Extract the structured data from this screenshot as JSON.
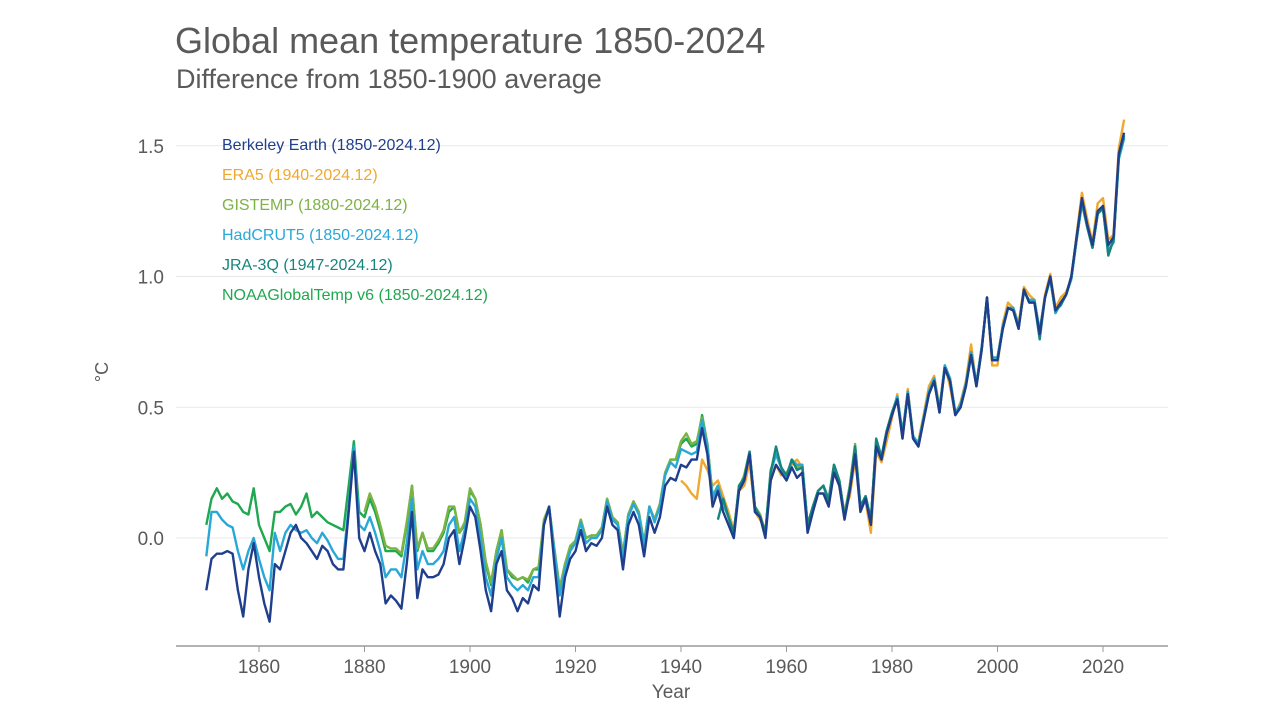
{
  "chart_data": {
    "type": "line",
    "title": "Global mean temperature 1850-2024",
    "subtitle": "Difference from 1850-1900 average",
    "xlabel": "Year",
    "ylabel": "°C",
    "xlim": [
      1843,
      2032
    ],
    "ylim": [
      -0.42,
      1.65
    ],
    "xticks": [
      1860,
      1880,
      1900,
      1920,
      1940,
      1960,
      1980,
      2000,
      2020
    ],
    "yticks": [
      0.0,
      0.5,
      1.0,
      1.5
    ],
    "ytick_labels": [
      "0.0",
      "0.5",
      "1.0",
      "1.5"
    ],
    "grid": "horizontal",
    "legend_position": "top-left",
    "series": [
      {
        "name": "ERA5 (1940-2024.12)",
        "color": "#f0a82e",
        "start": 1940,
        "values": [
          0.22,
          0.2,
          0.17,
          0.15,
          0.3,
          0.26,
          0.2,
          0.22,
          0.16,
          0.1,
          0.03,
          0.18,
          0.2,
          0.29,
          0.1,
          0.07,
          0.03,
          0.22,
          0.28,
          0.24,
          0.25,
          0.28,
          0.3,
          0.27,
          0.05,
          0.12,
          0.18,
          0.2,
          0.14,
          0.25,
          0.2,
          0.1,
          0.16,
          0.3,
          0.13,
          0.14,
          0.02,
          0.33,
          0.29,
          0.37,
          0.46,
          0.55,
          0.38,
          0.57,
          0.38,
          0.37,
          0.47,
          0.58,
          0.62,
          0.5,
          0.66,
          0.58,
          0.47,
          0.52,
          0.6,
          0.74,
          0.58,
          0.72,
          0.92,
          0.66,
          0.66,
          0.82,
          0.9,
          0.88,
          0.82,
          0.96,
          0.93,
          0.91,
          0.79,
          0.93,
          1.01,
          0.88,
          0.92,
          0.94,
          0.99,
          1.16,
          1.32,
          1.22,
          1.13,
          1.28,
          1.3,
          1.14,
          1.16,
          1.49,
          1.6
        ]
      },
      {
        "name": "NOAAGlobalTemp v6 (1850-2024.12)",
        "color": "#1fa84f",
        "start": 1850,
        "values": [
          0.05,
          0.15,
          0.19,
          0.15,
          0.17,
          0.14,
          0.13,
          0.1,
          0.09,
          0.19,
          0.05,
          0.0,
          -0.05,
          0.1,
          0.1,
          0.12,
          0.13,
          0.09,
          0.12,
          0.17,
          0.08,
          0.1,
          0.08,
          0.06,
          0.05,
          0.04,
          0.03,
          0.2,
          0.37,
          0.1,
          0.08,
          0.15,
          0.1,
          0.03,
          -0.05,
          -0.05,
          -0.05,
          -0.07,
          0.05,
          0.2,
          -0.05,
          0.02,
          -0.05,
          -0.05,
          -0.02,
          0.02,
          0.1,
          0.12,
          0.02,
          0.05,
          0.18,
          0.15,
          0.05,
          -0.1,
          -0.18,
          -0.05,
          0.03,
          -0.12,
          -0.15,
          -0.16,
          -0.15,
          -0.17,
          -0.12,
          -0.12,
          0.06,
          0.12,
          -0.05,
          -0.2,
          -0.1,
          -0.04,
          -0.01,
          0.07,
          0.0,
          0.01,
          0.01,
          0.04,
          0.15,
          0.08,
          0.06,
          -0.06,
          0.09,
          0.14,
          0.1,
          -0.02,
          0.12,
          0.07,
          0.13,
          0.25,
          0.3,
          0.3,
          0.36,
          0.38,
          0.35,
          0.36,
          0.47,
          0.36,
          0.16,
          0.2,
          0.13,
          0.08,
          0.02,
          0.19,
          0.24,
          0.33,
          0.12,
          0.09,
          0.02,
          0.26,
          0.32,
          0.27,
          0.23,
          0.3,
          0.27,
          0.28,
          0.05,
          0.12,
          0.18,
          0.2,
          0.15,
          0.28,
          0.22,
          0.09,
          0.2,
          0.35,
          0.12,
          0.16,
          0.07,
          0.37,
          0.31,
          0.41,
          0.48,
          0.54,
          0.4,
          0.56,
          0.39,
          0.36,
          0.46,
          0.56,
          0.61,
          0.49,
          0.66,
          0.61,
          0.48,
          0.51,
          0.59,
          0.71,
          0.59,
          0.73,
          0.91,
          0.69,
          0.69,
          0.81,
          0.88,
          0.88,
          0.81,
          0.94,
          0.91,
          0.91,
          0.79,
          0.92,
          0.99,
          0.86,
          0.9,
          0.93,
          0.99,
          1.14,
          1.28,
          1.19,
          1.11,
          1.24,
          1.26,
          1.1,
          1.13,
          1.45,
          1.53
        ]
      },
      {
        "name": "GISTEMP (1880-2024.12)",
        "color": "#7cb342",
        "start": 1880,
        "values": [
          0.1,
          0.17,
          0.12,
          0.05,
          -0.03,
          -0.04,
          -0.04,
          -0.06,
          0.06,
          0.2,
          -0.04,
          0.02,
          -0.04,
          -0.04,
          -0.01,
          0.03,
          0.12,
          0.12,
          0.02,
          0.06,
          0.19,
          0.15,
          0.05,
          -0.09,
          -0.17,
          -0.05,
          0.03,
          -0.12,
          -0.14,
          -0.16,
          -0.15,
          -0.16,
          -0.12,
          -0.11,
          0.07,
          0.12,
          -0.04,
          -0.19,
          -0.1,
          -0.03,
          -0.01,
          0.07,
          0.0,
          0.01,
          0.01,
          0.04,
          0.15,
          0.08,
          0.06,
          -0.06,
          0.09,
          0.14,
          0.1,
          -0.02,
          0.12,
          0.07,
          0.13,
          0.25,
          0.3,
          0.3,
          0.37,
          0.4,
          0.36,
          0.37,
          0.46,
          0.36,
          0.16,
          0.2,
          0.13,
          0.08,
          0.02,
          0.19,
          0.24,
          0.33,
          0.12,
          0.09,
          0.02,
          0.26,
          0.32,
          0.27,
          0.23,
          0.3,
          0.27,
          0.28,
          0.05,
          0.12,
          0.18,
          0.2,
          0.15,
          0.28,
          0.22,
          0.09,
          0.2,
          0.36,
          0.12,
          0.16,
          0.07,
          0.37,
          0.31,
          0.41,
          0.48,
          0.54,
          0.4,
          0.56,
          0.39,
          0.36,
          0.46,
          0.56,
          0.61,
          0.49,
          0.66,
          0.61,
          0.48,
          0.51,
          0.59,
          0.71,
          0.59,
          0.73,
          0.91,
          0.69,
          0.69,
          0.81,
          0.88,
          0.88,
          0.81,
          0.94,
          0.91,
          0.91,
          0.79,
          0.92,
          0.99,
          0.86,
          0.9,
          0.93,
          0.99,
          1.14,
          1.28,
          1.19,
          1.11,
          1.24,
          1.26,
          1.1,
          1.13,
          1.46,
          1.54
        ]
      },
      {
        "name": "HadCRUT5 (1850-2024.12)",
        "color": "#29a8d8",
        "start": 1850,
        "values": [
          -0.07,
          0.1,
          0.1,
          0.07,
          0.05,
          0.04,
          -0.05,
          -0.12,
          -0.05,
          0.0,
          -0.08,
          -0.15,
          -0.2,
          0.02,
          -0.05,
          0.02,
          0.05,
          0.03,
          0.02,
          0.03,
          0.0,
          -0.02,
          0.02,
          -0.01,
          -0.05,
          -0.08,
          -0.08,
          0.12,
          0.35,
          0.05,
          0.03,
          0.08,
          0.02,
          -0.05,
          -0.15,
          -0.12,
          -0.12,
          -0.15,
          -0.02,
          0.15,
          -0.12,
          -0.05,
          -0.1,
          -0.1,
          -0.08,
          -0.05,
          0.05,
          0.08,
          -0.05,
          0.03,
          0.15,
          0.12,
          0.0,
          -0.15,
          -0.22,
          -0.08,
          0.0,
          -0.15,
          -0.18,
          -0.2,
          -0.18,
          -0.2,
          -0.15,
          -0.15,
          0.05,
          0.12,
          -0.05,
          -0.22,
          -0.12,
          -0.05,
          -0.02,
          0.06,
          -0.02,
          0.0,
          0.0,
          0.03,
          0.14,
          0.07,
          0.05,
          -0.08,
          0.08,
          0.13,
          0.09,
          -0.03,
          0.12,
          0.06,
          0.12,
          0.24,
          0.29,
          0.27,
          0.34,
          0.33,
          0.32,
          0.33,
          0.45,
          0.35,
          0.15,
          0.2,
          0.13,
          0.08,
          0.0,
          0.2,
          0.23,
          0.33,
          0.12,
          0.08,
          0.02,
          0.25,
          0.32,
          0.27,
          0.23,
          0.3,
          0.28,
          0.28,
          0.05,
          0.12,
          0.18,
          0.2,
          0.15,
          0.27,
          0.22,
          0.08,
          0.19,
          0.34,
          0.12,
          0.16,
          0.07,
          0.36,
          0.31,
          0.41,
          0.48,
          0.54,
          0.4,
          0.56,
          0.39,
          0.36,
          0.46,
          0.56,
          0.61,
          0.49,
          0.66,
          0.61,
          0.48,
          0.51,
          0.59,
          0.71,
          0.59,
          0.73,
          0.91,
          0.69,
          0.69,
          0.81,
          0.88,
          0.88,
          0.81,
          0.94,
          0.91,
          0.91,
          0.79,
          0.92,
          0.99,
          0.86,
          0.9,
          0.93,
          0.99,
          1.14,
          1.28,
          1.19,
          1.11,
          1.24,
          1.26,
          1.1,
          1.13,
          1.45,
          1.53
        ]
      },
      {
        "name": "JRA-3Q (1947-2024.12)",
        "color": "#16857e",
        "start": 1947,
        "values": [
          0.07,
          0.15,
          0.08,
          0.02,
          0.2,
          0.23,
          0.33,
          0.12,
          0.08,
          0.02,
          0.25,
          0.35,
          0.27,
          0.24,
          0.3,
          0.26,
          0.27,
          0.05,
          0.12,
          0.18,
          0.2,
          0.14,
          0.28,
          0.22,
          0.08,
          0.19,
          0.35,
          0.12,
          0.16,
          0.07,
          0.38,
          0.31,
          0.41,
          0.48,
          0.53,
          0.39,
          0.55,
          0.38,
          0.35,
          0.45,
          0.55,
          0.6,
          0.48,
          0.65,
          0.6,
          0.47,
          0.5,
          0.58,
          0.7,
          0.58,
          0.72,
          0.92,
          0.68,
          0.68,
          0.8,
          0.88,
          0.87,
          0.8,
          0.95,
          0.9,
          0.9,
          0.76,
          0.92,
          1.0,
          0.87,
          0.89,
          0.93,
          1.0,
          1.15,
          1.29,
          1.19,
          1.11,
          1.24,
          1.26,
          1.08,
          1.14,
          1.46,
          1.54
        ]
      },
      {
        "name": "Berkeley Earth (1850-2024.12)",
        "color": "#1f3e8c",
        "start": 1850,
        "values": [
          -0.2,
          -0.08,
          -0.06,
          -0.06,
          -0.05,
          -0.06,
          -0.2,
          -0.3,
          -0.12,
          -0.02,
          -0.15,
          -0.25,
          -0.32,
          -0.1,
          -0.12,
          -0.05,
          0.02,
          0.05,
          0.0,
          -0.02,
          -0.05,
          -0.08,
          -0.03,
          -0.05,
          -0.1,
          -0.12,
          -0.12,
          0.1,
          0.33,
          0.0,
          -0.05,
          0.02,
          -0.05,
          -0.1,
          -0.25,
          -0.22,
          -0.24,
          -0.27,
          -0.1,
          0.1,
          -0.23,
          -0.12,
          -0.15,
          -0.15,
          -0.14,
          -0.1,
          0.0,
          0.03,
          -0.1,
          0.0,
          0.12,
          0.08,
          -0.05,
          -0.2,
          -0.28,
          -0.1,
          -0.05,
          -0.2,
          -0.23,
          -0.28,
          -0.23,
          -0.25,
          -0.18,
          -0.2,
          0.05,
          0.12,
          -0.1,
          -0.3,
          -0.15,
          -0.08,
          -0.05,
          0.03,
          -0.05,
          -0.02,
          -0.03,
          0.0,
          0.12,
          0.05,
          0.03,
          -0.12,
          0.05,
          0.1,
          0.05,
          -0.07,
          0.08,
          0.02,
          0.08,
          0.2,
          0.23,
          0.22,
          0.28,
          0.27,
          0.3,
          0.3,
          0.42,
          0.32,
          0.12,
          0.18,
          0.1,
          0.05,
          0.0,
          0.18,
          0.22,
          0.32,
          0.1,
          0.08,
          0.0,
          0.22,
          0.28,
          0.25,
          0.22,
          0.27,
          0.23,
          0.25,
          0.02,
          0.1,
          0.17,
          0.17,
          0.12,
          0.25,
          0.2,
          0.07,
          0.18,
          0.32,
          0.1,
          0.15,
          0.05,
          0.35,
          0.3,
          0.4,
          0.47,
          0.53,
          0.38,
          0.55,
          0.38,
          0.35,
          0.45,
          0.55,
          0.6,
          0.48,
          0.65,
          0.6,
          0.47,
          0.5,
          0.58,
          0.7,
          0.58,
          0.72,
          0.92,
          0.68,
          0.68,
          0.8,
          0.88,
          0.87,
          0.8,
          0.95,
          0.9,
          0.9,
          0.78,
          0.92,
          1.0,
          0.87,
          0.9,
          0.93,
          1.0,
          1.15,
          1.3,
          1.2,
          1.12,
          1.25,
          1.27,
          1.12,
          1.15,
          1.47,
          1.55
        ]
      }
    ],
    "legend": [
      {
        "label": "Berkeley Earth (1850-2024.12)",
        "color": "#1f3e8c"
      },
      {
        "label": "ERA5 (1940-2024.12)",
        "color": "#f0a82e"
      },
      {
        "label": "GISTEMP (1880-2024.12)",
        "color": "#7cb342"
      },
      {
        "label": "HadCRUT5 (1850-2024.12)",
        "color": "#29a8d8"
      },
      {
        "label": "JRA-3Q (1947-2024.12)",
        "color": "#16857e"
      },
      {
        "label": "NOAAGlobalTemp v6 (1850-2024.12)",
        "color": "#1fa84f"
      }
    ]
  }
}
